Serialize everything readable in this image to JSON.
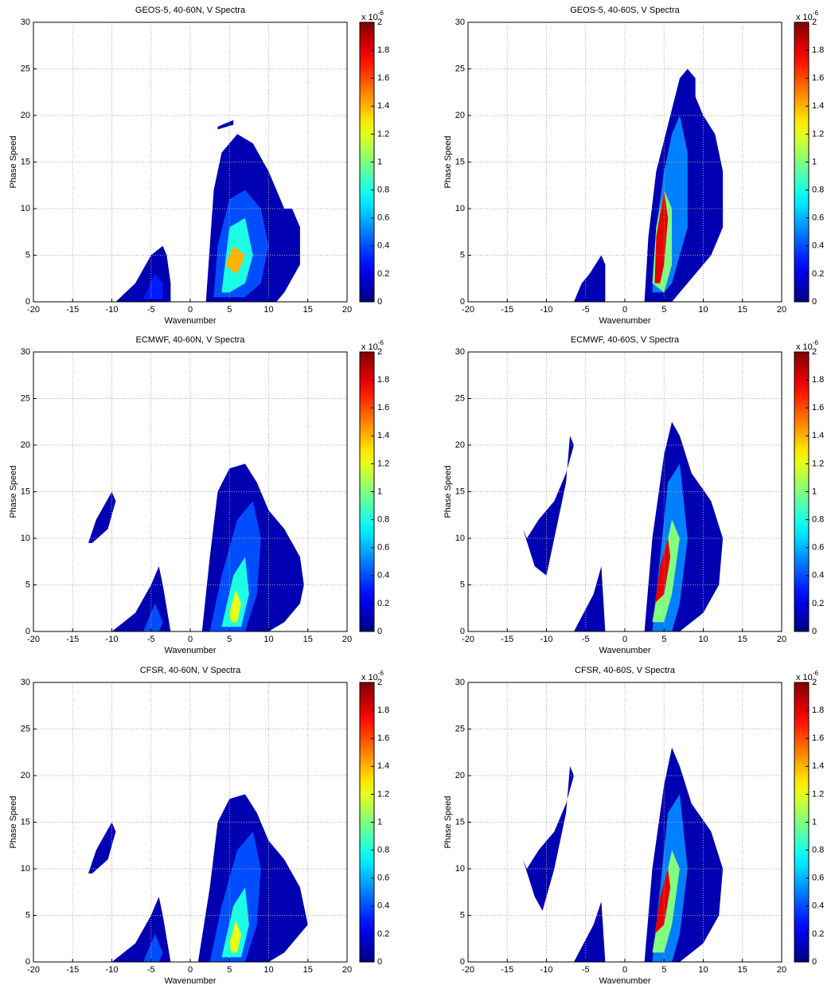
{
  "chart_data": [
    {
      "type": "contour",
      "title": "GEOS-5, 40-60N, V Spectra",
      "xlabel": "Wavenumber",
      "ylabel": "Phase Speed",
      "xlim": [
        -20,
        20
      ],
      "ylim": [
        0,
        30
      ],
      "xticks": [
        -20,
        -15,
        -10,
        -5,
        0,
        5,
        10,
        15,
        20
      ],
      "yticks": [
        0,
        5,
        10,
        15,
        20,
        25,
        30
      ],
      "grid": true,
      "clim": [
        0,
        2
      ],
      "cticks": [
        0,
        0.2,
        0.4,
        0.6,
        0.8,
        1,
        1.2,
        1.4,
        1.6,
        1.8,
        2
      ],
      "colorbar_base": "x 10",
      "colorbar_exponent": "-6",
      "contours": [
        {
          "level": 0.1,
          "x": [
            -9.5,
            -7,
            -5,
            -3.5,
            -3,
            -2.5,
            -2.5
          ],
          "y": [
            0,
            2,
            5,
            6,
            5,
            2,
            0
          ]
        },
        {
          "level": 0.3,
          "x": [
            -6,
            -4.5,
            -3.5,
            -3.5
          ],
          "y": [
            0.3,
            3,
            2,
            0.3
          ]
        },
        {
          "level": 0.1,
          "x": [
            2,
            2.5,
            3,
            4,
            6,
            8,
            10,
            11,
            12,
            13,
            14,
            14,
            12,
            11
          ],
          "y": [
            0,
            6,
            12,
            16,
            18,
            17,
            14,
            12,
            10,
            10,
            8,
            4,
            1,
            0
          ]
        },
        {
          "level": 0.1,
          "x": [
            3.5,
            5.5,
            5.5,
            3.5
          ],
          "y": [
            18.8,
            19.5,
            19,
            18.5
          ]
        },
        {
          "level": 0.4,
          "x": [
            3,
            3.5,
            5,
            7,
            9,
            10,
            9,
            7,
            4
          ],
          "y": [
            0.5,
            6,
            11,
            12,
            10,
            6,
            2,
            0.5,
            0.5
          ]
        },
        {
          "level": 0.8,
          "x": [
            4,
            5,
            7,
            8,
            7,
            5
          ],
          "y": [
            1,
            8,
            9,
            5,
            2,
            1
          ]
        },
        {
          "level": 1.4,
          "x": [
            4.5,
            5.5,
            7,
            6,
            5
          ],
          "y": [
            4,
            6,
            5,
            3,
            3.5
          ]
        }
      ]
    },
    {
      "type": "contour",
      "title": "GEOS-5, 40-60S, V Spectra",
      "xlabel": "Wavenumber",
      "ylabel": "Phase Speed",
      "xlim": [
        -20,
        20
      ],
      "ylim": [
        0,
        30
      ],
      "xticks": [
        -20,
        -15,
        -10,
        -5,
        0,
        5,
        10,
        15,
        20
      ],
      "yticks": [
        0,
        5,
        10,
        15,
        20,
        25,
        30
      ],
      "grid": true,
      "clim": [
        0,
        2
      ],
      "cticks": [
        0,
        0.2,
        0.4,
        0.6,
        0.8,
        1,
        1.2,
        1.4,
        1.6,
        1.8,
        2
      ],
      "colorbar_base": "x 10",
      "colorbar_exponent": "-6",
      "contours": [
        {
          "level": 0.1,
          "x": [
            -6.5,
            -5.5,
            -4.5,
            -3,
            -2.5,
            -2.5
          ],
          "y": [
            0,
            2,
            3,
            5,
            4,
            0
          ]
        },
        {
          "level": 0.1,
          "x": [
            2.5,
            3,
            4,
            5.5,
            7,
            8,
            9,
            9,
            10,
            11.5,
            12.5,
            12.5,
            11,
            9,
            7,
            6
          ],
          "y": [
            0,
            7,
            14,
            19,
            24,
            25,
            24,
            22,
            20,
            18,
            14,
            8,
            5,
            3,
            1,
            0
          ]
        },
        {
          "level": 0.5,
          "x": [
            3.5,
            4,
            5,
            6,
            7,
            8,
            8,
            6,
            5
          ],
          "y": [
            1,
            8,
            14,
            18,
            20,
            16,
            8,
            2,
            1
          ]
        },
        {
          "level": 1,
          "x": [
            3.5,
            4,
            5,
            6,
            6,
            5
          ],
          "y": [
            2,
            8,
            12,
            10,
            4,
            1
          ]
        },
        {
          "level": 1.8,
          "x": [
            3.8,
            4,
            5,
            5.5,
            5,
            4.5
          ],
          "y": [
            2,
            7,
            12,
            9,
            4,
            2
          ]
        }
      ]
    },
    {
      "type": "contour",
      "title": "ECMWF, 40-60N, V Spectra",
      "xlabel": "Wavenumber",
      "ylabel": "Phase Speed",
      "xlim": [
        -20,
        20
      ],
      "ylim": [
        0,
        30
      ],
      "xticks": [
        -20,
        -15,
        -10,
        -5,
        0,
        5,
        10,
        15,
        20
      ],
      "yticks": [
        0,
        5,
        10,
        15,
        20,
        25,
        30
      ],
      "grid": true,
      "clim": [
        0,
        2
      ],
      "cticks": [
        0,
        0.2,
        0.4,
        0.6,
        0.8,
        1,
        1.2,
        1.4,
        1.6,
        1.8,
        2
      ],
      "colorbar_base": "x 10",
      "colorbar_exponent": "-6",
      "contours": [
        {
          "level": 0.1,
          "x": [
            -13,
            -12,
            -10,
            -9.5,
            -10.5,
            -12.5
          ],
          "y": [
            9.5,
            12,
            15,
            14,
            11,
            9.5
          ]
        },
        {
          "level": 0.1,
          "x": [
            -10,
            -7,
            -5,
            -4,
            -3.5,
            -2.5
          ],
          "y": [
            0,
            2,
            5,
            7,
            5,
            0
          ]
        },
        {
          "level": 0.4,
          "x": [
            -6,
            -4.5,
            -3.5,
            -4
          ],
          "y": [
            0,
            3,
            1,
            0
          ]
        },
        {
          "level": 0.1,
          "x": [
            1.5,
            2.5,
            3.5,
            5,
            7,
            8.5,
            10,
            12,
            14,
            14.5,
            14,
            12,
            10
          ],
          "y": [
            0,
            8,
            15,
            17.5,
            18,
            16,
            13,
            11,
            8,
            5,
            3,
            1,
            0
          ]
        },
        {
          "level": 0.4,
          "x": [
            2.5,
            4,
            6,
            8,
            9,
            8.5,
            7,
            4
          ],
          "y": [
            0,
            6,
            12,
            14,
            10,
            4,
            0,
            0
          ]
        },
        {
          "level": 0.8,
          "x": [
            4,
            5.5,
            7,
            7.5,
            6.5,
            5
          ],
          "y": [
            0.5,
            6,
            8,
            4,
            0.5,
            0.5
          ]
        },
        {
          "level": 1.2,
          "x": [
            5,
            5.8,
            6.5,
            6,
            5.2
          ],
          "y": [
            2,
            4.5,
            3,
            1,
            1
          ]
        }
      ]
    },
    {
      "type": "contour",
      "title": "ECMWF, 40-60S, V Spectra",
      "xlabel": "Wavenumber",
      "ylabel": "Phase Speed",
      "xlim": [
        -20,
        20
      ],
      "ylim": [
        0,
        30
      ],
      "xticks": [
        -20,
        -15,
        -10,
        -5,
        0,
        5,
        10,
        15,
        20
      ],
      "yticks": [
        0,
        5,
        10,
        15,
        20,
        25,
        30
      ],
      "grid": true,
      "clim": [
        0,
        2
      ],
      "cticks": [
        0,
        0.2,
        0.4,
        0.6,
        0.8,
        1,
        1.2,
        1.4,
        1.6,
        1.8,
        2
      ],
      "colorbar_base": "x 10",
      "colorbar_exponent": "-6",
      "contours": [
        {
          "level": 0.1,
          "x": [
            -13,
            -11.5,
            -10,
            -9,
            -7.5,
            -7,
            -6.5,
            -7.5,
            -9,
            -11,
            -12.5
          ],
          "y": [
            11,
            7,
            6,
            10,
            16,
            21,
            20,
            17,
            14,
            12,
            10
          ]
        },
        {
          "level": 0.1,
          "x": [
            -6.5,
            -4,
            -3,
            -2.5,
            -3
          ],
          "y": [
            0,
            4,
            7,
            0,
            0
          ]
        },
        {
          "level": 0.1,
          "x": [
            2.5,
            3.5,
            5,
            6,
            7,
            8.5,
            11,
            12.5,
            12,
            10,
            7
          ],
          "y": [
            0,
            10,
            19,
            22.5,
            21,
            17,
            14,
            10,
            5,
            2,
            0
          ]
        },
        {
          "level": 0.5,
          "x": [
            3.5,
            4.5,
            5.5,
            7,
            8,
            7,
            6
          ],
          "y": [
            0,
            8,
            16,
            18,
            10,
            3,
            0
          ]
        },
        {
          "level": 1,
          "x": [
            3.5,
            4.5,
            6,
            7,
            6,
            5
          ],
          "y": [
            1,
            6,
            12,
            10,
            4,
            1
          ]
        },
        {
          "level": 1.8,
          "x": [
            3.8,
            4.5,
            5.5,
            5.8,
            5
          ],
          "y": [
            3,
            7,
            10,
            8,
            4
          ]
        }
      ]
    },
    {
      "type": "contour",
      "title": "CFSR, 40-60N, V Spectra",
      "xlabel": "Wavenumber",
      "ylabel": "Phase Speed",
      "xlim": [
        -20,
        20
      ],
      "ylim": [
        0,
        30
      ],
      "xticks": [
        -20,
        -15,
        -10,
        -5,
        0,
        5,
        10,
        15,
        20
      ],
      "yticks": [
        0,
        5,
        10,
        15,
        20,
        25,
        30
      ],
      "grid": true,
      "clim": [
        0,
        2
      ],
      "cticks": [
        0,
        0.2,
        0.4,
        0.6,
        0.8,
        1,
        1.2,
        1.4,
        1.6,
        1.8,
        2
      ],
      "colorbar_base": "x 10",
      "colorbar_exponent": "-6",
      "contours": [
        {
          "level": 0.1,
          "x": [
            -13,
            -12,
            -10,
            -9.5,
            -10.5,
            -12.5
          ],
          "y": [
            9.5,
            12,
            15,
            14,
            11,
            9.5
          ]
        },
        {
          "level": 0.1,
          "x": [
            -10,
            -7,
            -5,
            -4,
            -3.5,
            -2.5
          ],
          "y": [
            0,
            2,
            5,
            7,
            5,
            0
          ]
        },
        {
          "level": 0.4,
          "x": [
            -6,
            -4.5,
            -3.5,
            -4
          ],
          "y": [
            0,
            3,
            1,
            0
          ]
        },
        {
          "level": 0.1,
          "x": [
            1,
            2.5,
            3.5,
            5,
            7,
            8.5,
            10,
            12,
            14,
            15,
            14,
            12,
            10
          ],
          "y": [
            0,
            8,
            15,
            17.5,
            18,
            16,
            13,
            11,
            8,
            4,
            3,
            1,
            0
          ]
        },
        {
          "level": 0.4,
          "x": [
            2.5,
            4,
            6,
            8,
            9,
            8.5,
            7,
            4
          ],
          "y": [
            0,
            6,
            12,
            14,
            10,
            4,
            0,
            0
          ]
        },
        {
          "level": 0.8,
          "x": [
            4,
            5.5,
            7,
            7.5,
            6.5,
            5
          ],
          "y": [
            0.5,
            6,
            8,
            4,
            0.5,
            0.5
          ]
        },
        {
          "level": 1.2,
          "x": [
            5,
            5.8,
            6.5,
            6,
            5.2
          ],
          "y": [
            2,
            4.5,
            3,
            1,
            1
          ]
        }
      ]
    },
    {
      "type": "contour",
      "title": "CFSR, 40-60S, V Spectra",
      "xlabel": "Wavenumber",
      "ylabel": "Phase Speed",
      "xlim": [
        -20,
        20
      ],
      "ylim": [
        0,
        30
      ],
      "xticks": [
        -20,
        -15,
        -10,
        -5,
        0,
        5,
        10,
        15,
        20
      ],
      "yticks": [
        0,
        5,
        10,
        15,
        20,
        25,
        30
      ],
      "grid": true,
      "clim": [
        0,
        2
      ],
      "cticks": [
        0,
        0.2,
        0.4,
        0.6,
        0.8,
        1,
        1.2,
        1.4,
        1.6,
        1.8,
        2
      ],
      "colorbar_base": "x 10",
      "colorbar_exponent": "-6",
      "contours": [
        {
          "level": 0.1,
          "x": [
            -13,
            -11.5,
            -10.5,
            -9,
            -7.5,
            -7,
            -6.5,
            -7.5,
            -9,
            -11,
            -12.5
          ],
          "y": [
            11,
            7,
            5.5,
            10,
            16,
            21,
            20,
            17,
            14,
            12,
            10
          ]
        },
        {
          "level": 0.1,
          "x": [
            -6.5,
            -4,
            -3,
            -2.5,
            -3
          ],
          "y": [
            0,
            4,
            6.5,
            0,
            0
          ]
        },
        {
          "level": 0.1,
          "x": [
            2.5,
            3.5,
            5,
            6,
            7,
            8.5,
            11,
            12.5,
            12,
            10,
            7
          ],
          "y": [
            0,
            10,
            19,
            23,
            21,
            17,
            14,
            10,
            5,
            2,
            0
          ]
        },
        {
          "level": 0.5,
          "x": [
            3.5,
            4.5,
            5.5,
            7,
            8,
            7,
            6
          ],
          "y": [
            0,
            8,
            16,
            18,
            10,
            3,
            0
          ]
        },
        {
          "level": 1,
          "x": [
            3.5,
            4.5,
            6,
            7,
            6,
            5
          ],
          "y": [
            1,
            6,
            12,
            10,
            4,
            1
          ]
        },
        {
          "level": 1.8,
          "x": [
            3.8,
            4.5,
            5.5,
            5.8,
            5
          ],
          "y": [
            3,
            7,
            10,
            8,
            4
          ]
        }
      ]
    }
  ]
}
